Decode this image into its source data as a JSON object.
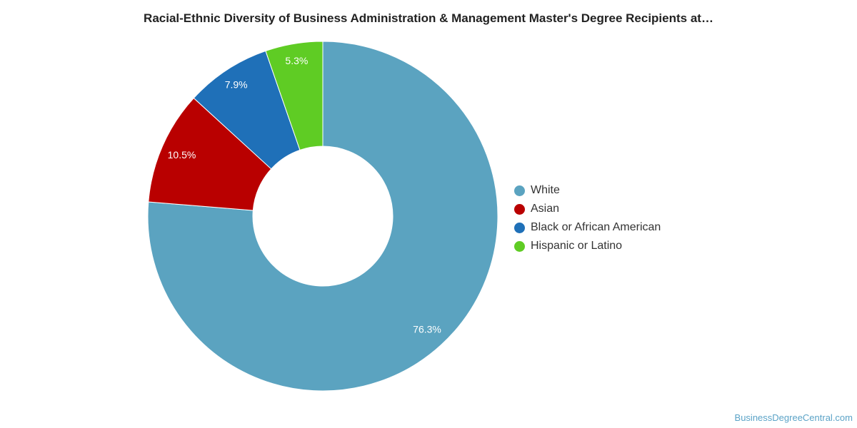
{
  "chart_data": {
    "type": "pie",
    "title": "Racial-Ethnic Diversity of Business Administration & Management Master's Degree Recipients at…",
    "categories": [
      "White",
      "Asian",
      "Black or African American",
      "Hispanic or Latino"
    ],
    "values": [
      76.3,
      10.5,
      7.9,
      5.3
    ],
    "labels": [
      "76.3%",
      "10.5%",
      "7.9%",
      "5.3%"
    ],
    "colors": [
      "#5ba3c0",
      "#b90000",
      "#1f70b8",
      "#5fcc24"
    ],
    "donut": true,
    "legend_position": "right"
  },
  "footer": {
    "source": "BusinessDegreeCentral.com"
  }
}
